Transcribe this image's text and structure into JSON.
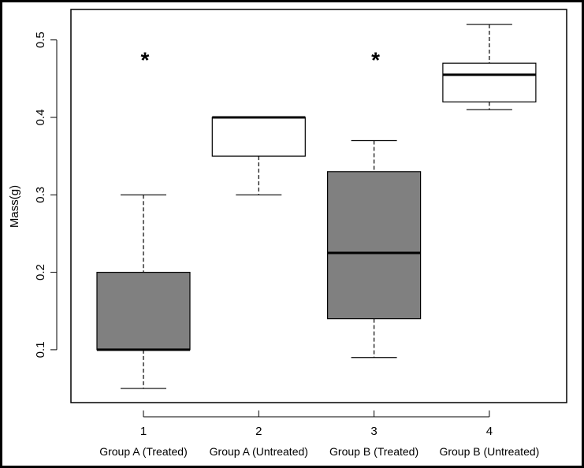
{
  "chart_data": {
    "type": "boxplot",
    "title": "",
    "xlabel": "",
    "ylabel": "Mass(g)",
    "ylim": [
      0.01,
      0.545
    ],
    "yticks": [
      "0.1",
      "0.2",
      "0.3",
      "0.4",
      "0.5"
    ],
    "ytick_values": [
      0.1,
      0.2,
      0.3,
      0.4,
      0.5
    ],
    "xticks": [
      "1",
      "2",
      "3",
      "4"
    ],
    "categories": [
      "Group A (Treated)",
      "Group A (Untreated)",
      "Group B (Treated)",
      "Group B (Untreated)"
    ],
    "boxes": [
      {
        "position": 1,
        "whisker_low": 0.05,
        "q1": 0.1,
        "median": 0.1,
        "q3": 0.2,
        "whisker_high": 0.3,
        "fill": "#808080",
        "marker": "*"
      },
      {
        "position": 2,
        "whisker_low": 0.3,
        "q1": 0.35,
        "median": 0.4,
        "q3": 0.4,
        "whisker_high": 0.4,
        "fill": "#ffffff",
        "marker": ""
      },
      {
        "position": 3,
        "whisker_low": 0.09,
        "q1": 0.14,
        "median": 0.225,
        "q3": 0.33,
        "whisker_high": 0.37,
        "fill": "#808080",
        "marker": "*"
      },
      {
        "position": 4,
        "whisker_low": 0.41,
        "q1": 0.42,
        "median": 0.455,
        "q3": 0.47,
        "whisker_high": 0.52,
        "fill": "#ffffff",
        "marker": ""
      }
    ],
    "marker_value": 0.48,
    "grid": false
  }
}
